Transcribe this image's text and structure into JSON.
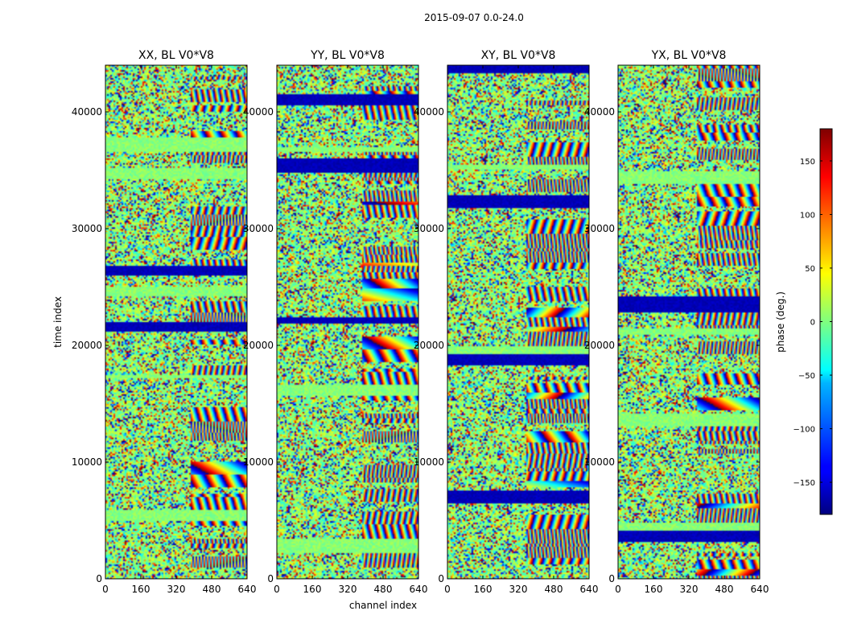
{
  "chart_data": {
    "type": "heatmap",
    "suptitle": "2015-09-07 0.0-24.0",
    "xlabel": "channel index",
    "ylabel": "time index",
    "xlim": [
      0,
      640
    ],
    "ylim": [
      0,
      44000
    ],
    "x_ticks": [
      0,
      160,
      320,
      480,
      640
    ],
    "y_ticks": [
      0,
      10000,
      20000,
      30000,
      40000
    ],
    "panels": [
      {
        "title": "XX, BL V0*V8"
      },
      {
        "title": "YY, BL V0*V8"
      },
      {
        "title": "XY, BL V0*V8"
      },
      {
        "title": "YX, BL V0*V8"
      }
    ],
    "colorbar": {
      "label": "phase (deg.)",
      "range": [
        -180,
        180
      ],
      "ticks": [
        -150,
        -100,
        -50,
        0,
        50,
        100,
        150
      ],
      "tick_labels": [
        "−150",
        "−100",
        "−50",
        "0",
        "50",
        "100",
        "150"
      ],
      "colormap": "jet"
    }
  }
}
